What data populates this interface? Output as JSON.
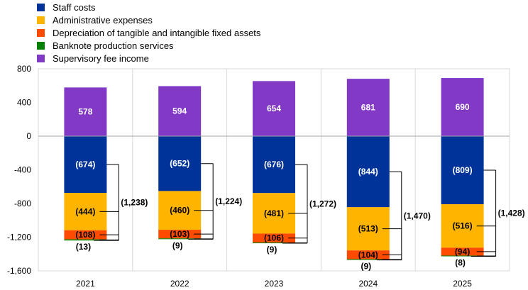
{
  "chart_data": {
    "type": "bar",
    "stacked": true,
    "categories": [
      "2021",
      "2022",
      "2023",
      "2024",
      "2025"
    ],
    "series": [
      {
        "name": "Staff costs",
        "color": "#003399",
        "values": [
          -674,
          -652,
          -676,
          -844,
          -809
        ],
        "labels": [
          "(674)",
          "(652)",
          "(676)",
          "(844)",
          "(809)"
        ]
      },
      {
        "name": "Administrative expenses",
        "color": "#FFB400",
        "values": [
          -444,
          -460,
          -481,
          -513,
          -516
        ],
        "labels": [
          "(444)",
          "(460)",
          "(481)",
          "(513)",
          "(516)"
        ]
      },
      {
        "name": "Depreciation of tangible and intangible fixed assets",
        "color": "#FF4B00",
        "values": [
          -108,
          -103,
          -106,
          -104,
          -94
        ],
        "labels": [
          "(108)",
          "(103)",
          "(106)",
          "(104)",
          "(94)"
        ]
      },
      {
        "name": "Banknote production services",
        "color": "#008000",
        "values": [
          -13,
          -9,
          -9,
          -9,
          -8
        ],
        "labels": [
          "(13)",
          "(9)",
          "(9)",
          "(9)",
          "(8)"
        ]
      },
      {
        "name": "Supervisory fee income",
        "color": "#8139C6",
        "values": [
          578,
          594,
          654,
          681,
          690
        ],
        "labels": [
          "578",
          "594",
          "654",
          "681",
          "690"
        ]
      }
    ],
    "totals": {
      "values": [
        -1238,
        -1224,
        -1272,
        -1470,
        -1428
      ],
      "labels": [
        "(1,238)",
        "(1,224)",
        "(1,272)",
        "(1,470)",
        "(1,428)"
      ]
    },
    "ylim": [
      -1600,
      800
    ],
    "yticks": [
      800,
      400,
      0,
      -400,
      -800,
      -1200,
      -1600
    ],
    "ytick_labels": [
      "800",
      "400",
      "0",
      "-400",
      "-800",
      "-1,200",
      "-1,600"
    ],
    "grid": "vertical",
    "legend_position": "top-left"
  }
}
